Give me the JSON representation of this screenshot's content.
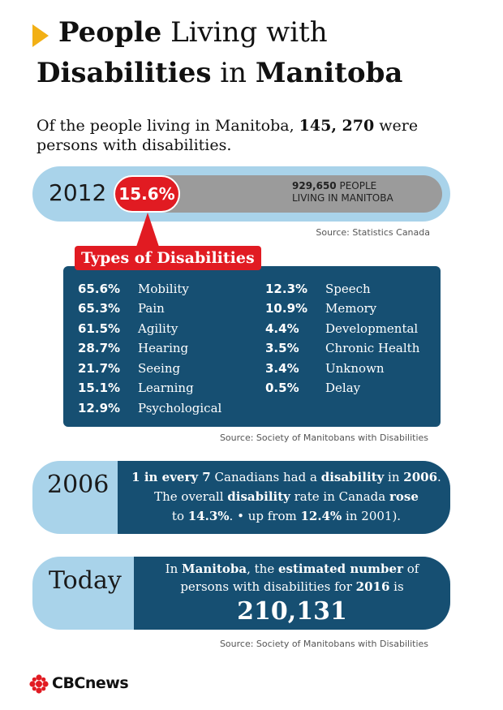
{
  "title": {
    "line1_bold": "People",
    "line1_rest": " Living with",
    "line2_bold1": "Disabilities",
    "line2_mid": " in ",
    "line2_bold2": "Manitoba"
  },
  "intro": {
    "before": "Of the people living in Manitoba, ",
    "number": "145, 270",
    "after": " were persons with disabilities."
  },
  "stat2012": {
    "year": "2012",
    "percent_label": "15.6%",
    "percent_value": 15.6,
    "people_number": "929,650",
    "people_text": " PEOPLE",
    "people_line2": "LIVING IN MANITOBA",
    "source": "Source: Statistics Canada"
  },
  "types": {
    "label": "Types of Disabilities",
    "left": [
      {
        "pct": "65.6%",
        "name": "Mobility"
      },
      {
        "pct": "65.3%",
        "name": "Pain"
      },
      {
        "pct": "61.5%",
        "name": "Agility"
      },
      {
        "pct": "28.7%",
        "name": "Hearing"
      },
      {
        "pct": "21.7%",
        "name": "Seeing"
      },
      {
        "pct": "15.1%",
        "name": "Learning"
      },
      {
        "pct": "12.9%",
        "name": "Psychological"
      }
    ],
    "right": [
      {
        "pct": "12.3%",
        "name": "Speech"
      },
      {
        "pct": "10.9%",
        "name": "Memory"
      },
      {
        "pct": "4.4%",
        "name": "Developmental"
      },
      {
        "pct": "3.5%",
        "name": "Chronic Health"
      },
      {
        "pct": "3.4%",
        "name": "Unknown"
      },
      {
        "pct": "0.5%",
        "name": "Delay"
      }
    ],
    "source": "Source: Society of Manitobans with Disabilities"
  },
  "stat2006": {
    "year": "2006",
    "l1_a": "1 in every 7",
    "l1_b": " Canadians had a ",
    "l1_c": "disability",
    "l1_d": " in ",
    "l1_e": "2006",
    "l1_f": ".",
    "l2_a": "The overall ",
    "l2_b": "disability",
    "l2_c": " rate in Canada ",
    "l2_d": "rose",
    "l3_a": "to ",
    "l3_b": "14.3%",
    "l3_c": ". • up from ",
    "l3_d": "12.4%",
    "l3_e": " in 2001)."
  },
  "today": {
    "label": "Today",
    "l1_a": "In ",
    "l1_b": "Manitoba",
    "l1_c": ", the ",
    "l1_d": "estimated number",
    "l1_e": " of",
    "l2_a": "persons with disabilities for ",
    "l2_b": "2016",
    "l2_c": " is",
    "number": "210,131",
    "source": "Source: Society of Manitobans with Disabilities"
  },
  "logo": {
    "text": "CBCnews",
    "icon": "cbc-gem-icon"
  },
  "colors": {
    "red": "#e11b22",
    "navy": "#164f72",
    "lightblue": "#a9d3ea",
    "yellow": "#f2b015"
  }
}
